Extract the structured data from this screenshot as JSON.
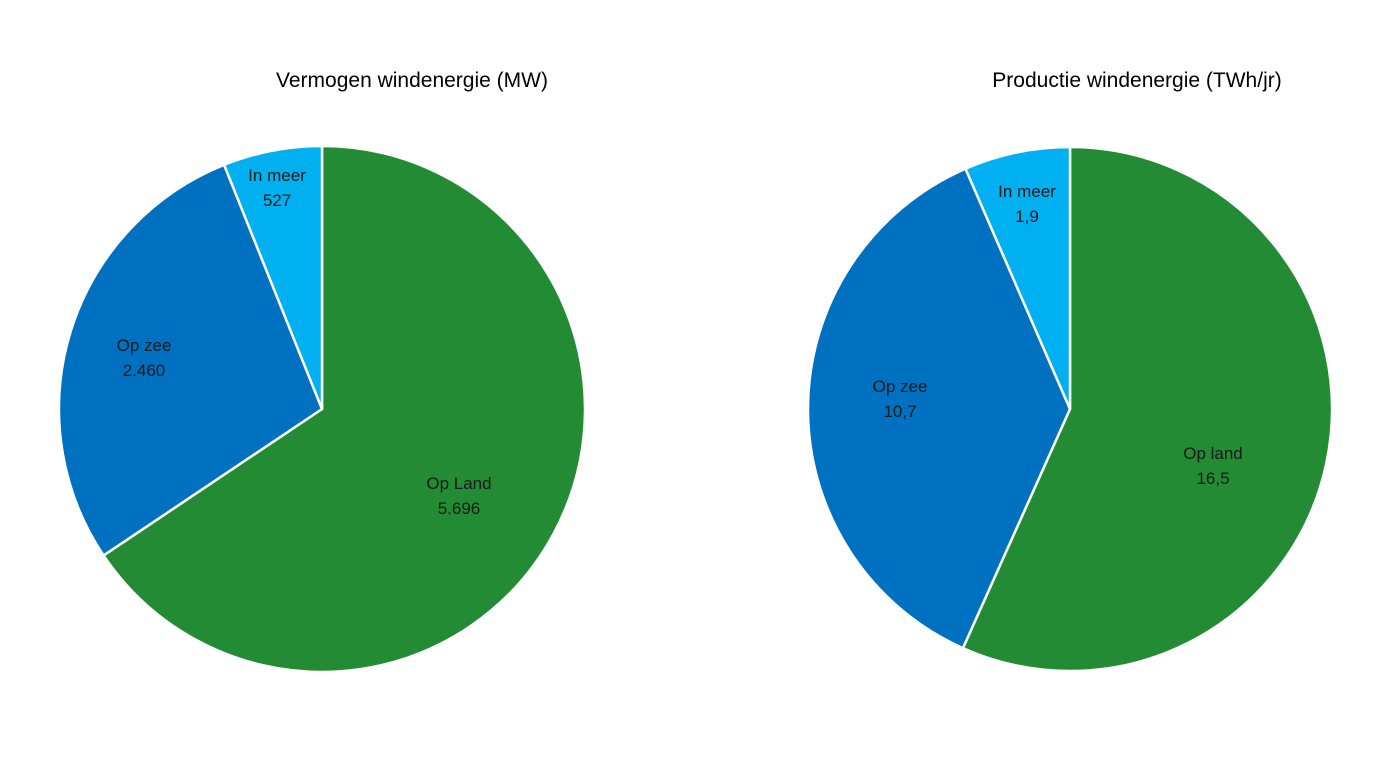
{
  "chart_data": [
    {
      "type": "pie",
      "title": "Vermogen windenergie (MW)",
      "slices": [
        {
          "label": "Op Land",
          "value": 5696,
          "value_label": "5.696",
          "color": "#228B34"
        },
        {
          "label": "Op zee",
          "value": 2460,
          "value_label": "2.460",
          "color": "#0070C0"
        },
        {
          "label": "In meer",
          "value": 527,
          "value_label": "527",
          "color": "#00B0F0"
        }
      ],
      "start_angle": "12 o'clock",
      "direction": "clockwise",
      "slice_border": "#ffffff",
      "legend": "none"
    },
    {
      "type": "pie",
      "title": "Productie windenergie (TWh/jr)",
      "slices": [
        {
          "label": "Op land",
          "value": 16.5,
          "value_label": "16,5",
          "color": "#228B34"
        },
        {
          "label": "Op zee",
          "value": 10.7,
          "value_label": "10,7",
          "color": "#0070C0"
        },
        {
          "label": "In meer",
          "value": 1.9,
          "value_label": "1,9",
          "color": "#00B0F0"
        }
      ],
      "start_angle": "12 o'clock",
      "direction": "clockwise",
      "slice_border": "#ffffff",
      "legend": "none"
    }
  ]
}
